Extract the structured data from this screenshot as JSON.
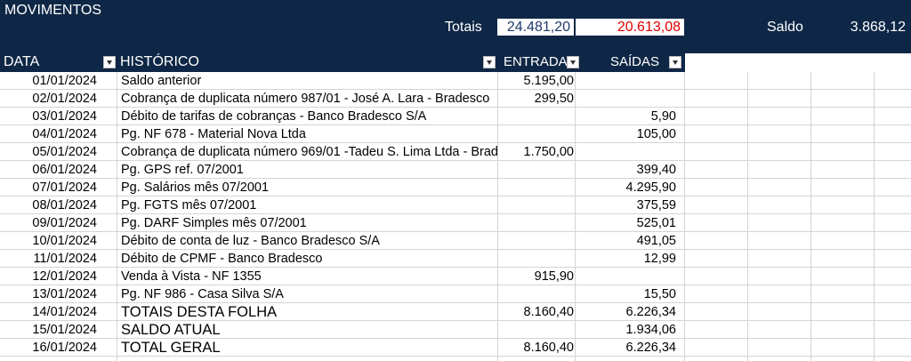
{
  "title": "MOVIMENTOS",
  "totals": {
    "label": "Totais",
    "entrada": "24.481,20",
    "saidas": "20.613,08"
  },
  "saldo": {
    "label": "Saldo",
    "value": "3.868,12"
  },
  "columns": {
    "data": "DATA",
    "historico": "HISTÓRICO",
    "entrada": "ENTRADA",
    "saidas": "SAÍDAS"
  },
  "rows": [
    {
      "data": "01/01/2024",
      "hist": "Saldo anterior",
      "entrada": "5.195,00",
      "saidas": ""
    },
    {
      "data": "02/01/2024",
      "hist": "Cobrança de duplicata número 987/01 - José A. Lara - Bradesco",
      "entrada": "299,50",
      "saidas": ""
    },
    {
      "data": "03/01/2024",
      "hist": "Débito de tarifas de cobranças - Banco Bradesco S/A",
      "entrada": "",
      "saidas": "5,90"
    },
    {
      "data": "04/01/2024",
      "hist": "Pg. NF 678 - Material Nova Ltda",
      "entrada": "",
      "saidas": "105,00"
    },
    {
      "data": "05/01/2024",
      "hist": "Cobrança de duplicata número 969/01 -Tadeu S. Lima Ltda - Brad",
      "entrada": "1.750,00",
      "saidas": ""
    },
    {
      "data": "06/01/2024",
      "hist": " Pg. GPS ref. 07/2001",
      "entrada": "",
      "saidas": "399,40"
    },
    {
      "data": "07/01/2024",
      "hist": " Pg. Salários mês 07/2001",
      "entrada": "",
      "saidas": "4.295,90"
    },
    {
      "data": "08/01/2024",
      "hist": " Pg. FGTS mês 07/2001",
      "entrada": "",
      "saidas": "375,59"
    },
    {
      "data": "09/01/2024",
      "hist": " Pg. DARF Simples mês 07/2001",
      "entrada": "",
      "saidas": "525,01"
    },
    {
      "data": "10/01/2024",
      "hist": " Débito de conta de luz - Banco Bradesco S/A",
      "entrada": "",
      "saidas": "491,05"
    },
    {
      "data": "11/01/2024",
      "hist": " Débito de CPMF - Banco Bradesco",
      "entrada": "",
      "saidas": "12,99"
    },
    {
      "data": "12/01/2024",
      "hist": " Venda à Vista - NF 1355",
      "entrada": "915,90",
      "saidas": ""
    },
    {
      "data": "13/01/2024",
      "hist": " Pg. NF 986 - Casa Silva S/A",
      "entrada": "",
      "saidas": "15,50"
    },
    {
      "data": "14/01/2024",
      "hist": " TOTAIS DESTA FOLHA",
      "entrada": "8.160,40",
      "saidas": "6.226,34"
    },
    {
      "data": "15/01/2024",
      "hist": " SALDO ATUAL",
      "entrada": "",
      "saidas": "1.934,06"
    },
    {
      "data": "16/01/2024",
      "hist": " TOTAL GERAL",
      "entrada": "8.160,40",
      "saidas": "6.226,34"
    }
  ]
}
